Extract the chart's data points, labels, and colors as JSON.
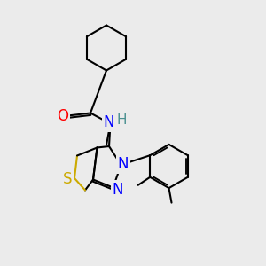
{
  "bg_color": "#ebebeb",
  "bond_color": "#000000",
  "bond_width": 1.5,
  "atom_colors": {
    "O": "#ff0000",
    "N": "#0000ff",
    "S": "#ccaa00",
    "H": "#4a9090",
    "C": "#000000"
  },
  "font_size_atom": 11,
  "font_size_label": 9
}
